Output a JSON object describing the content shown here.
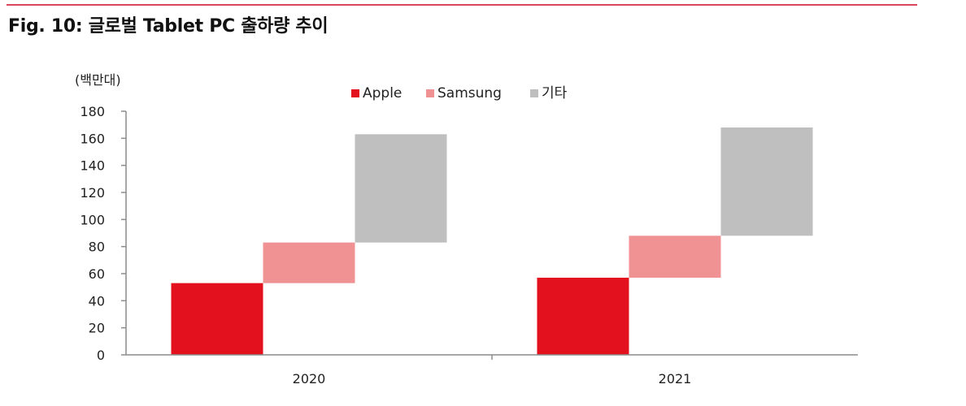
{
  "figure": {
    "title": "Fig. 10: 글로벌 Tablet PC 출하량 추이",
    "accent_color": "#d9475a"
  },
  "chart_data": {
    "type": "bar",
    "subtype": "stacked-waterfall",
    "unit_label": "(백만대)",
    "categories": [
      "2020",
      "2021"
    ],
    "series": [
      {
        "name": "Apple",
        "color": "#e3101d",
        "values": [
          53,
          57
        ]
      },
      {
        "name": "Samsung",
        "color": "#f09294",
        "values": [
          30,
          31
        ]
      },
      {
        "name": "기타",
        "color": "#bfbfbf",
        "values": [
          80,
          80
        ]
      }
    ],
    "ylim": [
      0,
      180
    ],
    "yticks": [
      0,
      20,
      40,
      60,
      80,
      100,
      120,
      140,
      160,
      180
    ],
    "grid": false,
    "legend_position": "top-center"
  }
}
